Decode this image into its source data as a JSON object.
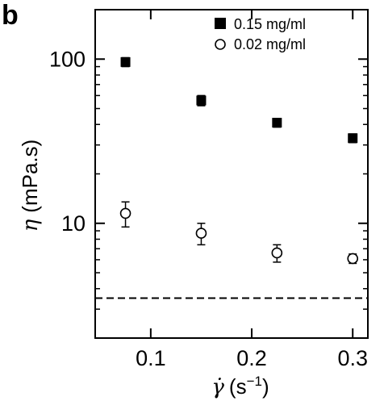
{
  "panel_label": "b",
  "chart_data": {
    "type": "scatter",
    "xlabel": {
      "symbol": "γ̇",
      "unit": "(s",
      "exp": "−1",
      "close": ")"
    },
    "ylabel": {
      "symbol": "η",
      "unit": "(mPa.s)"
    },
    "y_scale": "log",
    "xlim": [
      0.045,
      0.315
    ],
    "ylim": [
      2,
      200
    ],
    "x_ticks": [
      0.1,
      0.2,
      0.3
    ],
    "x_tick_labels": [
      "0.1",
      "0.2",
      "0.3"
    ],
    "y_major_ticks": [
      10,
      100
    ],
    "y_tick_labels": [
      "10",
      "100"
    ],
    "y_minor_ticks": [
      2,
      3,
      4,
      5,
      6,
      7,
      8,
      9,
      20,
      30,
      40,
      50,
      60,
      70,
      80,
      90
    ],
    "grid": false,
    "legend_position": "top-right",
    "series": [
      {
        "name": "0.15 mg/ml",
        "marker": "filled-square",
        "x": [
          0.075,
          0.15,
          0.225,
          0.3
        ],
        "y": [
          96,
          56,
          41,
          33
        ],
        "err": [
          6,
          4,
          2.5,
          2
        ]
      },
      {
        "name": "0.02 mg/ml",
        "marker": "open-circle",
        "x": [
          0.075,
          0.15,
          0.225,
          0.3
        ],
        "y": [
          11.5,
          8.7,
          6.6,
          6.1
        ],
        "err": [
          2.0,
          1.3,
          0.8,
          0.4
        ]
      }
    ],
    "reference_line": {
      "y": 3.5,
      "style": "dashed"
    }
  }
}
